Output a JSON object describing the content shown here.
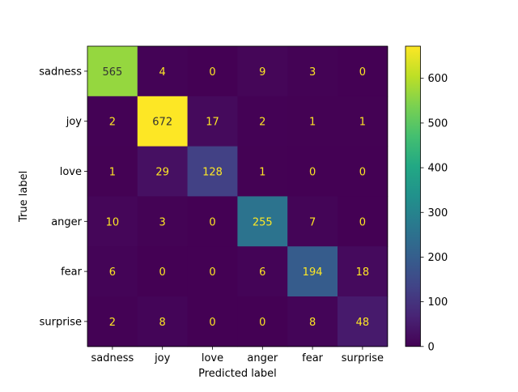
{
  "chart_data": {
    "type": "heatmap",
    "title": "",
    "xlabel": "Predicted label",
    "ylabel": "True label",
    "x_categories": [
      "sadness",
      "joy",
      "love",
      "anger",
      "fear",
      "surprise"
    ],
    "y_categories": [
      "sadness",
      "joy",
      "love",
      "anger",
      "fear",
      "surprise"
    ],
    "values": [
      [
        565,
        4,
        0,
        9,
        3,
        0
      ],
      [
        2,
        672,
        17,
        2,
        1,
        1
      ],
      [
        1,
        29,
        128,
        1,
        0,
        0
      ],
      [
        10,
        3,
        0,
        255,
        7,
        0
      ],
      [
        6,
        0,
        0,
        6,
        194,
        18
      ],
      [
        2,
        8,
        0,
        0,
        8,
        48
      ]
    ],
    "colormap": "viridis",
    "vmin": 0,
    "vmax": 672,
    "colorbar_ticks": [
      0,
      100,
      200,
      300,
      400,
      500,
      600
    ],
    "text_color_dark_cells": "#fde725",
    "text_color_light_cells": "#333333"
  }
}
